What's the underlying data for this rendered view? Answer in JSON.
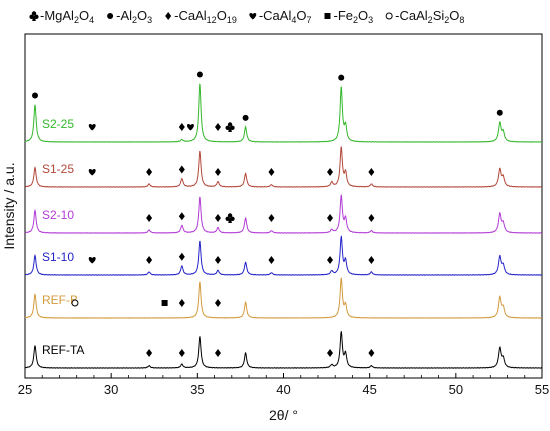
{
  "chart_data": {
    "type": "line",
    "xlabel": "2θ/ °",
    "ylabel": "Intensity / a.u.",
    "xlim": [
      25,
      55
    ],
    "xticks": [
      25,
      30,
      35,
      40,
      45,
      50,
      55
    ],
    "grid": false,
    "legend_position": "top",
    "legend": [
      {
        "symbol": "club",
        "label": "-MgAl",
        "sub1": "2",
        "mid": "O",
        "sub2": "4",
        "tail": ""
      },
      {
        "symbol": "dot",
        "label": "-Al",
        "sub1": "2",
        "mid": "O",
        "sub2": "3",
        "tail": ""
      },
      {
        "symbol": "diamond",
        "label": "-CaAl",
        "sub1": "12",
        "mid": "O",
        "sub2": "19",
        "tail": ""
      },
      {
        "symbol": "heart",
        "label": "-CaAl",
        "sub1": "4",
        "mid": "O",
        "sub2": "7",
        "tail": ""
      },
      {
        "symbol": "square",
        "label": "-Fe",
        "sub1": "2",
        "mid": "O",
        "sub2": "3",
        "tail": ""
      },
      {
        "symbol": "circle",
        "label": "-CaAl",
        "sub1": "2",
        "mid": "Si",
        "sub2": "2",
        "tail": "O8"
      }
    ],
    "series": [
      {
        "name": "REF-TA",
        "color": "#000000",
        "peaks": [
          [
            25.58,
            0.3
          ],
          [
            32.2,
            0.03
          ],
          [
            34.1,
            0.05
          ],
          [
            35.15,
            0.42
          ],
          [
            37.8,
            0.2
          ],
          [
            42.8,
            0.04
          ],
          [
            43.35,
            0.47
          ],
          [
            43.6,
            0.18
          ],
          [
            45.1,
            0.03
          ],
          [
            52.55,
            0.26
          ],
          [
            52.75,
            0.12
          ]
        ],
        "markers": [
          [
            "diamond",
            32.2
          ],
          [
            "diamond",
            34.1
          ],
          [
            "diamond",
            36.2
          ],
          [
            "diamond",
            42.7
          ],
          [
            "diamond",
            45.1
          ]
        ]
      },
      {
        "name": "REF-B",
        "color": "#d39a3c",
        "peaks": [
          [
            25.58,
            0.32
          ],
          [
            35.15,
            0.48
          ],
          [
            37.8,
            0.21
          ],
          [
            43.35,
            0.52
          ],
          [
            43.6,
            0.16
          ],
          [
            52.55,
            0.27
          ],
          [
            52.75,
            0.13
          ],
          [
            57.5,
            0.0
          ]
        ],
        "markers": [
          [
            "circle",
            27.9
          ],
          [
            "square",
            33.1
          ],
          [
            "diamond",
            34.1
          ],
          [
            "diamond",
            36.2
          ]
        ]
      },
      {
        "name": "S1-10",
        "color": "#2323c8",
        "peaks": [
          [
            25.58,
            0.26
          ],
          [
            32.2,
            0.04
          ],
          [
            34.1,
            0.12
          ],
          [
            35.15,
            0.45
          ],
          [
            36.2,
            0.06
          ],
          [
            37.8,
            0.17
          ],
          [
            39.3,
            0.03
          ],
          [
            42.8,
            0.05
          ],
          [
            43.35,
            0.5
          ],
          [
            43.6,
            0.18
          ],
          [
            45.1,
            0.04
          ],
          [
            52.55,
            0.24
          ],
          [
            52.75,
            0.12
          ]
        ],
        "markers": [
          [
            "heart",
            28.9
          ],
          [
            "diamond",
            32.2
          ],
          [
            "diamond",
            34.1
          ],
          [
            "diamond",
            36.2
          ],
          [
            "diamond",
            39.3
          ],
          [
            "diamond",
            42.7
          ],
          [
            "diamond",
            45.1
          ]
        ]
      },
      {
        "name": "S2-10",
        "color": "#b23bd6",
        "peaks": [
          [
            25.58,
            0.3
          ],
          [
            32.2,
            0.04
          ],
          [
            34.1,
            0.1
          ],
          [
            35.15,
            0.48
          ],
          [
            36.2,
            0.07
          ],
          [
            37.8,
            0.2
          ],
          [
            39.3,
            0.03
          ],
          [
            42.8,
            0.04
          ],
          [
            43.35,
            0.49
          ],
          [
            43.6,
            0.18
          ],
          [
            45.1,
            0.03
          ],
          [
            52.55,
            0.25
          ],
          [
            52.75,
            0.12
          ]
        ],
        "markers": [
          [
            "diamond",
            32.2
          ],
          [
            "diamond",
            34.1
          ],
          [
            "diamond",
            36.2
          ],
          [
            "club",
            36.9
          ],
          [
            "diamond",
            39.3
          ],
          [
            "diamond",
            42.7
          ],
          [
            "diamond",
            45.1
          ]
        ]
      },
      {
        "name": "S1-25",
        "color": "#b2473a",
        "peaks": [
          [
            25.58,
            0.26
          ],
          [
            32.2,
            0.04
          ],
          [
            34.1,
            0.11
          ],
          [
            35.15,
            0.48
          ],
          [
            36.2,
            0.07
          ],
          [
            37.8,
            0.18
          ],
          [
            39.3,
            0.03
          ],
          [
            42.8,
            0.06
          ],
          [
            43.35,
            0.52
          ],
          [
            43.6,
            0.18
          ],
          [
            45.1,
            0.04
          ],
          [
            52.55,
            0.23
          ],
          [
            52.75,
            0.12
          ]
        ],
        "markers": [
          [
            "heart",
            28.9
          ],
          [
            "diamond",
            32.2
          ],
          [
            "diamond",
            34.1
          ],
          [
            "diamond",
            36.2
          ],
          [
            "diamond",
            39.3
          ],
          [
            "diamond",
            42.7
          ],
          [
            "diamond",
            45.1
          ]
        ]
      },
      {
        "name": "S2-25",
        "color": "#33b82a",
        "peaks": [
          [
            25.58,
            0.5
          ],
          [
            34.1,
            0.03
          ],
          [
            35.15,
            0.78
          ],
          [
            37.8,
            0.2
          ],
          [
            43.35,
            0.72
          ],
          [
            43.6,
            0.2
          ],
          [
            52.55,
            0.25
          ],
          [
            52.75,
            0.12
          ]
        ],
        "markers": [
          [
            "dot",
            25.58
          ],
          [
            "heart",
            28.9
          ],
          [
            "diamond",
            34.1
          ],
          [
            "heart",
            34.6
          ],
          [
            "diamond",
            36.2
          ],
          [
            "club",
            36.9
          ],
          [
            "dot",
            35.15
          ],
          [
            "dot",
            37.8
          ],
          [
            "dot",
            43.35
          ],
          [
            "dot",
            52.55
          ]
        ]
      }
    ]
  }
}
